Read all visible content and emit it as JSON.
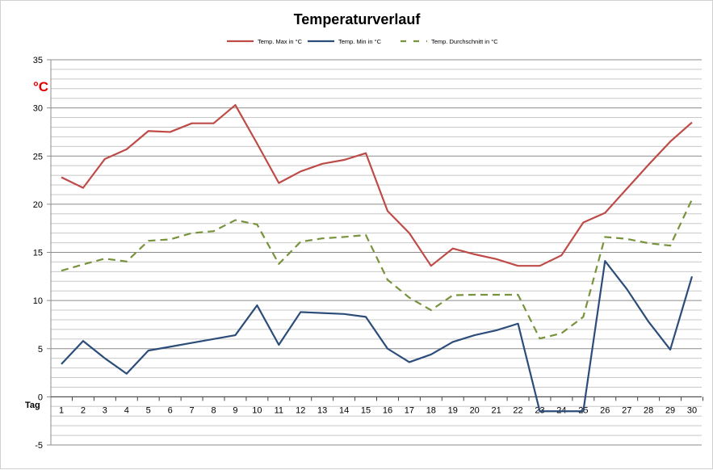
{
  "chart_data": {
    "type": "line",
    "title": "Temperaturverlauf",
    "ylabel": "°C",
    "xlabel": "Tag",
    "ylim": [
      -5,
      35
    ],
    "ytick_step": 5,
    "minor_grid_step": 1,
    "grid": true,
    "legend_position": "top",
    "x": [
      1,
      2,
      3,
      4,
      5,
      6,
      7,
      8,
      9,
      10,
      11,
      12,
      13,
      14,
      15,
      16,
      17,
      18,
      19,
      20,
      21,
      22,
      23,
      24,
      25,
      26,
      27,
      28,
      29,
      30
    ],
    "series": [
      {
        "name": "Temp. Max in °C",
        "color": "#be4b48",
        "dash": false,
        "values": [
          22.8,
          21.7,
          24.7,
          25.7,
          27.6,
          27.5,
          28.4,
          28.4,
          30.3,
          26.3,
          22.2,
          23.4,
          24.2,
          24.6,
          25.3,
          19.3,
          17.0,
          13.6,
          15.4,
          14.8,
          14.3,
          13.6,
          13.6,
          14.7,
          18.1,
          19.1,
          21.6,
          24.1,
          26.5,
          28.5
        ]
      },
      {
        "name": "Temp. Min in °C",
        "color": "#2c4d7a",
        "dash": false,
        "values": [
          3.4,
          5.8,
          4.0,
          2.4,
          4.8,
          5.2,
          5.6,
          6.0,
          6.4,
          9.5,
          5.4,
          8.8,
          8.7,
          8.6,
          8.3,
          5.0,
          3.6,
          4.4,
          5.7,
          6.4,
          6.9,
          7.6,
          -1.5,
          -1.5,
          -1.5,
          14.1,
          11.2,
          7.8,
          4.9,
          12.5
        ]
      },
      {
        "name": "Temp. Durchschnitt in °C",
        "color": "#77933c",
        "dash": true,
        "values": [
          13.1,
          13.75,
          14.35,
          14.05,
          16.2,
          16.35,
          17.0,
          17.2,
          18.35,
          17.9,
          13.8,
          16.1,
          16.45,
          16.6,
          16.8,
          12.15,
          10.3,
          9.0,
          10.55,
          10.6,
          10.6,
          10.6,
          6.05,
          6.6,
          8.3,
          16.6,
          16.4,
          15.95,
          15.7,
          20.5
        ]
      }
    ]
  }
}
